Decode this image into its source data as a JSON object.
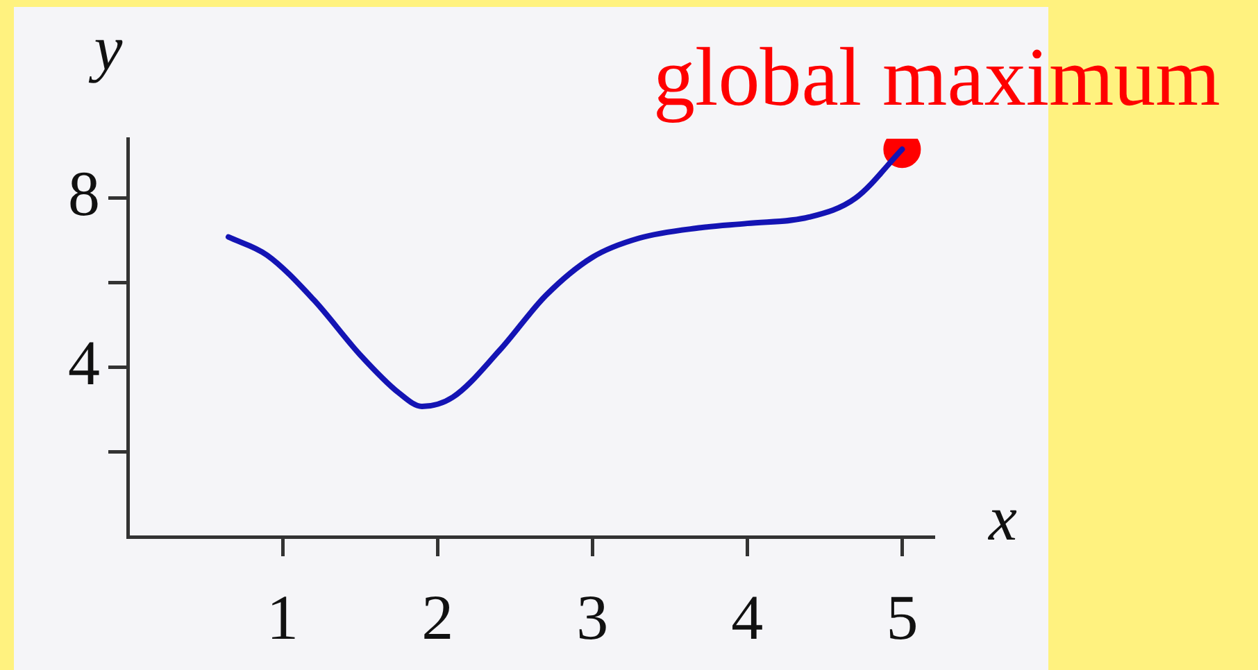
{
  "chart_data": {
    "type": "line",
    "xlabel": "x",
    "ylabel": "y",
    "xlim": [
      0,
      5.2
    ],
    "ylim": [
      0,
      9.4
    ],
    "xticks": [
      1,
      2,
      3,
      4,
      5
    ],
    "yticks": [
      {
        "value": 2,
        "label": null
      },
      4,
      {
        "value": 6,
        "label": null
      },
      8
    ],
    "series": [
      {
        "type": "line",
        "color": "#1414b4",
        "marker": "none",
        "line_style": "solid",
        "x": [
          0.65,
          0.9,
          1.2,
          1.5,
          1.75,
          1.9,
          2.1,
          2.4,
          2.7,
          3.0,
          3.3,
          3.7,
          4.0,
          4.4,
          4.7,
          5.0
        ],
        "values": [
          7.08,
          6.65,
          5.6,
          4.3,
          3.4,
          3.08,
          3.3,
          4.4,
          5.7,
          6.6,
          7.05,
          7.3,
          7.4,
          7.55,
          8.0,
          9.15
        ]
      },
      {
        "type": "scatter",
        "color": "#ff0000",
        "marker": "circle",
        "x": [
          5
        ],
        "values": [
          9.15
        ]
      }
    ],
    "annotations": [
      {
        "text": "global maximum",
        "x": 5,
        "y": 9.15
      }
    ]
  }
}
